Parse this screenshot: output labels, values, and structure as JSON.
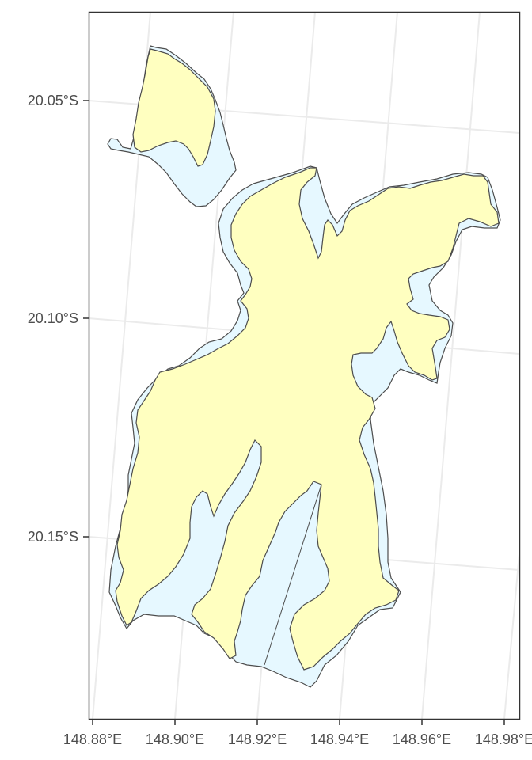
{
  "map": {
    "type": "map",
    "projection_note": "lat/long graticule shown slightly rotated",
    "x_axis": {
      "ticks": [
        "148.88°E",
        "148.90°E",
        "148.92°E",
        "148.94°E",
        "148.96°E",
        "148.98°E"
      ]
    },
    "y_axis": {
      "ticks": [
        "20.05°S",
        "20.10°S",
        "20.15°S"
      ]
    },
    "grid": true,
    "colors": {
      "land": "#ffffc0",
      "fringe": "#e6f8ff",
      "outline": "#4d4d4d",
      "grid": "#ebebeb",
      "panel_border": "#333333"
    }
  }
}
